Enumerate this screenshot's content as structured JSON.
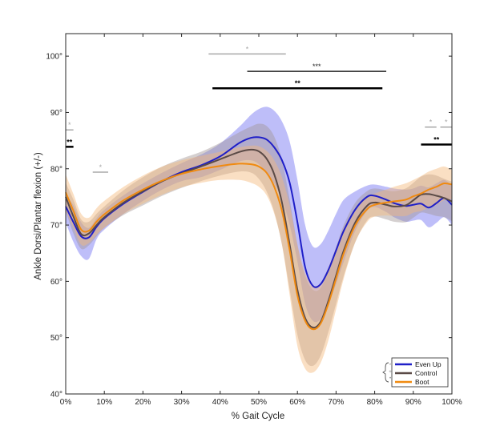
{
  "chart_data": {
    "type": "line",
    "xlabel": "% Gait Cycle",
    "ylabel": "Ankle Dorsi/Plantar flexion (+/-)",
    "xlim": [
      0,
      100
    ],
    "ylim": [
      40,
      104
    ],
    "x_ticks": [
      "0%",
      "10%",
      "20%",
      "30%",
      "40%",
      "50%",
      "60%",
      "70%",
      "80%",
      "90%",
      "100%"
    ],
    "x_tick_values": [
      0,
      10,
      20,
      30,
      40,
      50,
      60,
      70,
      80,
      90,
      100
    ],
    "y_ticks": [
      "40°",
      "50°",
      "60°",
      "70°",
      "80°",
      "90°",
      "100°"
    ],
    "y_tick_values": [
      40,
      50,
      60,
      70,
      80,
      90,
      100
    ],
    "grid": false,
    "legend": {
      "placement": "bottom-right"
    },
    "legend_markers": [
      "*",
      "+",
      "•"
    ],
    "x": [
      0,
      2,
      4,
      6,
      8,
      10,
      15,
      20,
      25,
      30,
      35,
      40,
      45,
      48,
      50,
      52,
      54,
      56,
      58,
      60,
      62,
      64,
      66,
      68,
      70,
      72,
      75,
      78,
      80,
      83,
      85,
      88,
      90,
      92,
      94,
      96,
      98,
      100
    ],
    "series": [
      {
        "name": "Even Up",
        "color": "#1f1fc8",
        "band_color": "#6f6ff2",
        "values": [
          73.3,
          70.5,
          68.0,
          67.8,
          69.7,
          71.2,
          73.8,
          75.9,
          77.8,
          79.4,
          80.6,
          82.2,
          84.6,
          85.5,
          85.6,
          85.2,
          83.8,
          81.5,
          77.5,
          70.5,
          62.5,
          59.2,
          59.5,
          62.0,
          65.5,
          69.0,
          72.8,
          75.0,
          75.2,
          74.5,
          73.9,
          73.4,
          73.6,
          73.8,
          73.1,
          73.9,
          74.8,
          73.6
        ],
        "upper": [
          75.3,
          73.5,
          70.5,
          69.5,
          71.2,
          72.7,
          75.3,
          77.4,
          79.3,
          81.0,
          82.5,
          84.5,
          87.5,
          89.6,
          90.6,
          91.0,
          90.3,
          88.4,
          84.8,
          78.0,
          70.0,
          66.2,
          66.6,
          69.0,
          72.0,
          74.5,
          76.0,
          77.0,
          77.2,
          76.8,
          76.5,
          76.3,
          76.5,
          77.0,
          76.7,
          77.4,
          78.0,
          77.0
        ],
        "lower": [
          70.5,
          67.0,
          64.5,
          64.0,
          67.5,
          69.2,
          72.0,
          74.3,
          76.3,
          77.8,
          78.5,
          79.8,
          81.3,
          81.5,
          80.8,
          79.2,
          77.3,
          74.5,
          70.0,
          63.5,
          56.0,
          53.0,
          53.3,
          56.0,
          59.5,
          63.5,
          69.0,
          72.5,
          73.2,
          72.3,
          71.4,
          70.6,
          70.8,
          70.9,
          69.6,
          70.4,
          71.4,
          70.0
        ]
      },
      {
        "name": "Control",
        "color": "#5a4a46",
        "band_color": "#a29696",
        "values": [
          75.0,
          71.5,
          68.4,
          68.5,
          70.0,
          71.4,
          74.0,
          76.0,
          77.8,
          79.2,
          80.4,
          81.7,
          83.0,
          83.4,
          83.1,
          81.8,
          79.0,
          74.0,
          66.5,
          58.5,
          53.5,
          51.8,
          52.8,
          56.5,
          61.0,
          65.5,
          70.5,
          73.4,
          74.0,
          73.6,
          73.3,
          73.5,
          74.4,
          75.4,
          75.5,
          75.2,
          74.8,
          74.2
        ],
        "upper": [
          77.5,
          74.5,
          71.0,
          70.6,
          72.0,
          73.3,
          76.2,
          78.5,
          80.4,
          81.8,
          83.0,
          84.6,
          86.5,
          87.5,
          88.0,
          87.6,
          85.7,
          81.5,
          74.5,
          66.5,
          61.0,
          58.5,
          58.8,
          62.0,
          66.0,
          70.0,
          74.0,
          76.0,
          76.5,
          76.2,
          76.0,
          76.5,
          77.5,
          78.6,
          79.0,
          78.8,
          78.2,
          77.7
        ],
        "lower": [
          72.5,
          68.5,
          65.8,
          66.4,
          68.0,
          69.5,
          71.8,
          73.5,
          75.2,
          76.6,
          77.8,
          78.8,
          79.5,
          79.3,
          78.2,
          76.0,
          72.3,
          66.5,
          58.5,
          50.5,
          46.0,
          45.0,
          46.8,
          51.0,
          56.0,
          61.0,
          67.0,
          70.8,
          71.5,
          71.0,
          70.6,
          70.5,
          71.3,
          72.2,
          72.0,
          71.6,
          71.4,
          70.7
        ]
      },
      {
        "name": "Boot",
        "color": "#f08a10",
        "band_color": "#f4b97a",
        "values": [
          75.8,
          72.5,
          69.2,
          69.0,
          70.6,
          71.9,
          74.4,
          76.3,
          77.9,
          79.1,
          79.9,
          80.5,
          80.9,
          80.8,
          80.4,
          79.3,
          76.8,
          72.5,
          65.5,
          57.5,
          53.0,
          51.5,
          52.5,
          56.0,
          60.5,
          65.0,
          70.0,
          72.8,
          73.6,
          74.0,
          74.2,
          74.5,
          75.1,
          75.6,
          76.3,
          76.8,
          77.4,
          77.2
        ],
        "upper": [
          79.0,
          75.5,
          72.0,
          71.3,
          73.0,
          74.3,
          76.8,
          78.8,
          80.4,
          81.5,
          82.3,
          83.0,
          83.8,
          84.1,
          84.0,
          83.2,
          81.5,
          78.5,
          73.5,
          66.5,
          61.5,
          59.3,
          59.7,
          62.5,
          66.0,
          69.5,
          73.0,
          75.0,
          75.6,
          76.3,
          76.8,
          77.4,
          78.0,
          78.7,
          79.5,
          80.0,
          80.4,
          79.8
        ],
        "lower": [
          72.5,
          69.5,
          66.5,
          66.8,
          68.3,
          69.5,
          72.0,
          73.8,
          75.4,
          76.7,
          77.5,
          78.0,
          78.0,
          77.5,
          76.8,
          75.3,
          72.0,
          66.5,
          57.5,
          48.5,
          44.5,
          43.8,
          45.5,
          49.5,
          55.0,
          60.5,
          67.0,
          70.5,
          71.5,
          71.7,
          71.6,
          71.6,
          72.2,
          72.5,
          73.1,
          73.6,
          74.4,
          74.6
        ]
      }
    ],
    "significance_bars": [
      {
        "x_start": 37,
        "x_end": 57,
        "y": 100.4,
        "label": "*",
        "color": "#a8a8a8",
        "width": 1.5
      },
      {
        "x_start": 47,
        "x_end": 83,
        "y": 97.3,
        "label": "***",
        "color": "#222222",
        "width": 1.5
      },
      {
        "x_start": 38,
        "x_end": 82,
        "y": 94.3,
        "label": "**",
        "color": "#000000",
        "width": 2.5
      },
      {
        "x_start": 0,
        "x_end": 2,
        "y": 86.9,
        "label": "*",
        "color": "#a8a8a8",
        "width": 1.5
      },
      {
        "x_start": 0,
        "x_end": 2,
        "y": 83.9,
        "label": "**",
        "color": "#000000",
        "width": 2.5
      },
      {
        "x_start": 7,
        "x_end": 11,
        "y": 79.4,
        "label": "*",
        "color": "#a8a8a8",
        "width": 1.5
      },
      {
        "x_start": 93,
        "x_end": 96,
        "y": 87.4,
        "label": "*",
        "color": "#a8a8a8",
        "width": 1.5
      },
      {
        "x_start": 97,
        "x_end": 100,
        "y": 87.4,
        "label": "*",
        "color": "#a8a8a8",
        "width": 1.5
      },
      {
        "x_start": 92,
        "x_end": 100,
        "y": 84.3,
        "label": "**",
        "color": "#000000",
        "width": 2.5
      }
    ]
  }
}
